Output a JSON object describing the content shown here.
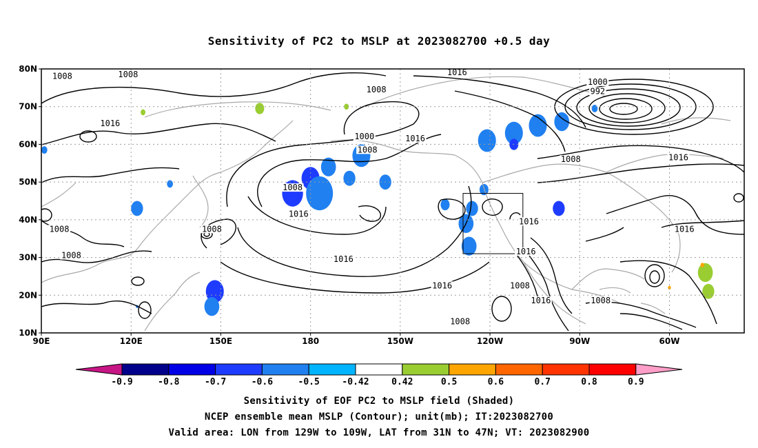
{
  "title": "Sensitivity of PC2 to MSLP at 2023082700 +0.5 day",
  "map": {
    "lat_ticks": [
      "80N",
      "70N",
      "60N",
      "50N",
      "40N",
      "30N",
      "20N",
      "10N"
    ],
    "lon_ticks": [
      "90E",
      "120E",
      "150E",
      "180",
      "150W",
      "120W",
      "90W",
      "60W"
    ],
    "lon_range_deg": [
      90,
      325
    ],
    "lat_range_deg": [
      10,
      80
    ],
    "grid": true,
    "valid_box": {
      "lon": [
        231,
        251
      ],
      "lat": [
        31,
        47
      ]
    },
    "isobar_labels": [
      {
        "text": "1008",
        "lon": 97,
        "lat": 77.5
      },
      {
        "text": "1008",
        "lon": 119,
        "lat": 78
      },
      {
        "text": "1016",
        "lon": 113,
        "lat": 65
      },
      {
        "text": "1008",
        "lon": 202,
        "lat": 74
      },
      {
        "text": "1016",
        "lon": 229,
        "lat": 78.5
      },
      {
        "text": "1000",
        "lon": 276,
        "lat": 76
      },
      {
        "text": "992",
        "lon": 276,
        "lat": 73.5
      },
      {
        "text": "1000",
        "lon": 198,
        "lat": 61.5
      },
      {
        "text": "1008",
        "lon": 199,
        "lat": 58
      },
      {
        "text": "1016",
        "lon": 215,
        "lat": 61
      },
      {
        "text": "1008",
        "lon": 267,
        "lat": 55.5
      },
      {
        "text": "1016",
        "lon": 303,
        "lat": 56
      },
      {
        "text": "1008",
        "lon": 174,
        "lat": 48
      },
      {
        "text": "1016",
        "lon": 176,
        "lat": 41
      },
      {
        "text": "1016",
        "lon": 253,
        "lat": 39
      },
      {
        "text": "1008",
        "lon": 96,
        "lat": 37
      },
      {
        "text": "1008",
        "lon": 147,
        "lat": 37
      },
      {
        "text": "1008",
        "lon": 100,
        "lat": 30
      },
      {
        "text": "1016",
        "lon": 252,
        "lat": 31
      },
      {
        "text": "1016",
        "lon": 305,
        "lat": 37
      },
      {
        "text": "1016",
        "lon": 191,
        "lat": 29
      },
      {
        "text": "1016",
        "lon": 224,
        "lat": 22
      },
      {
        "text": "1008",
        "lon": 250,
        "lat": 22
      },
      {
        "text": "1016",
        "lon": 257,
        "lat": 18
      },
      {
        "text": "1008",
        "lon": 277,
        "lat": 18
      },
      {
        "text": "1008",
        "lon": 230,
        "lat": 12.5
      }
    ]
  },
  "colorbar": {
    "labels": [
      "-0.9",
      "-0.8",
      "-0.7",
      "-0.6",
      "-0.5",
      "-0.42",
      "0.42",
      "0.5",
      "0.6",
      "0.7",
      "0.8",
      "0.9"
    ],
    "colors": [
      "#00008b",
      "#0000e6",
      "#1e3cff",
      "#2080f0",
      "#00b4ff",
      "#ffffff",
      "#9acd32",
      "#ffa500",
      "#ff6600",
      "#ff3300",
      "#ff0000"
    ],
    "low_end_color": "#c71585",
    "high_end_color": "#ff9ec8"
  },
  "captions": {
    "line1": "Sensitivity of EOF PC2 to MSLP field (Shaded)",
    "line2": "NCEP ensemble mean MSLP (Contour); unit(mb); IT:2023082700",
    "line3": "Valid area: LON from 129W to 109W, LAT from 31N to 47N; VT: 2023082900"
  },
  "sensitivity_patches": [
    {
      "lon": 174,
      "lat": 47,
      "r": 3.5,
      "level": -0.6
    },
    {
      "lon": 180,
      "lat": 51,
      "r": 3.0,
      "level": -0.6
    },
    {
      "lon": 186,
      "lat": 54,
      "r": 2.5,
      "level": -0.5
    },
    {
      "lon": 183,
      "lat": 47,
      "r": 4.5,
      "level": -0.5
    },
    {
      "lon": 193,
      "lat": 51,
      "r": 2.0,
      "level": -0.5
    },
    {
      "lon": 205,
      "lat": 50,
      "r": 2.0,
      "level": -0.5
    },
    {
      "lon": 197,
      "lat": 57,
      "r": 3.0,
      "level": -0.5
    },
    {
      "lon": 122,
      "lat": 43,
      "r": 2.0,
      "level": -0.5
    },
    {
      "lon": 133,
      "lat": 49.5,
      "r": 1.0,
      "level": -0.5
    },
    {
      "lon": 148,
      "lat": 21,
      "r": 3.0,
      "level": -0.6
    },
    {
      "lon": 147,
      "lat": 17,
      "r": 2.5,
      "level": -0.5
    },
    {
      "lon": 232,
      "lat": 39,
      "r": 2.5,
      "level": -0.5
    },
    {
      "lon": 233,
      "lat": 33,
      "r": 2.5,
      "level": -0.5
    },
    {
      "lon": 234,
      "lat": 43,
      "r": 2.0,
      "level": -0.5
    },
    {
      "lon": 238,
      "lat": 48,
      "r": 1.5,
      "level": -0.5
    },
    {
      "lon": 225,
      "lat": 44,
      "r": 1.5,
      "level": -0.5
    },
    {
      "lon": 239,
      "lat": 61,
      "r": 3.0,
      "level": -0.5
    },
    {
      "lon": 248,
      "lat": 63,
      "r": 3.0,
      "level": -0.5
    },
    {
      "lon": 256,
      "lat": 65,
      "r": 3.0,
      "level": -0.5
    },
    {
      "lon": 264,
      "lat": 66,
      "r": 2.5,
      "level": -0.5
    },
    {
      "lon": 248,
      "lat": 60,
      "r": 1.5,
      "level": -0.6
    },
    {
      "lon": 91,
      "lat": 58.5,
      "r": 1.0,
      "level": -0.5
    },
    {
      "lon": 263,
      "lat": 43,
      "r": 2.0,
      "level": -0.6
    },
    {
      "lon": 275,
      "lat": 69.5,
      "r": 1.0,
      "level": -0.5
    },
    {
      "lon": 163,
      "lat": 69.5,
      "r": 1.5,
      "level": 0.5
    },
    {
      "lon": 124,
      "lat": 68.5,
      "r": 0.8,
      "level": 0.5
    },
    {
      "lon": 192,
      "lat": 70,
      "r": 0.8,
      "level": 0.5
    },
    {
      "lon": 312,
      "lat": 26,
      "r": 2.5,
      "level": 0.5
    },
    {
      "lon": 313,
      "lat": 21,
      "r": 2.0,
      "level": 0.5
    },
    {
      "lon": 311,
      "lat": 28,
      "r": 0.6,
      "level": 0.6
    },
    {
      "lon": 300,
      "lat": 22,
      "r": 0.5,
      "level": 0.6
    },
    {
      "lon": 122,
      "lat": 17,
      "r": 0.4,
      "level": -0.5
    }
  ]
}
